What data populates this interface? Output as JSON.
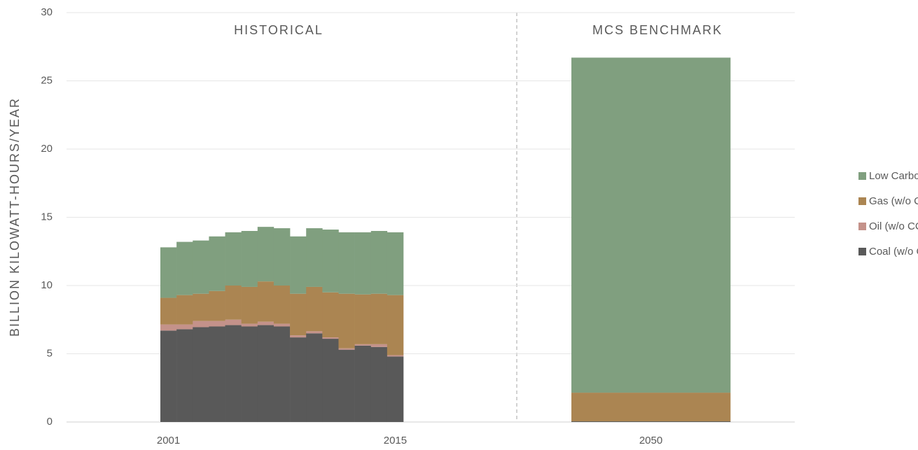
{
  "chart_data": [
    {
      "type": "bar",
      "stacked": true,
      "title": "HISTORICAL",
      "y_label": "BILLION KILOWATT-HOURS/YEAR",
      "categories": [
        "2001",
        null,
        null,
        null,
        null,
        null,
        null,
        null,
        null,
        null,
        null,
        null,
        null,
        null,
        "2015"
      ],
      "series": [
        {
          "name": "Coal (w/o CCS)",
          "color": "#595959",
          "values": [
            6.7,
            6.8,
            6.95,
            7.0,
            7.1,
            7.0,
            7.1,
            7.0,
            6.2,
            6.5,
            6.1,
            5.3,
            5.6,
            5.5,
            4.8
          ]
        },
        {
          "name": "Oil (w/o CCS)",
          "color": "#c4928a",
          "values": [
            0.45,
            0.35,
            0.45,
            0.4,
            0.4,
            0.2,
            0.25,
            0.2,
            0.15,
            0.15,
            0.1,
            0.1,
            0.1,
            0.2,
            0.1
          ]
        },
        {
          "name": "Gas (w/o CCS)",
          "color": "#ab8552",
          "values": [
            1.95,
            2.15,
            2.0,
            2.2,
            2.5,
            2.7,
            2.95,
            2.8,
            3.05,
            3.25,
            3.3,
            4.0,
            3.65,
            3.7,
            4.4
          ]
        },
        {
          "name": "Low Carbon",
          "color": "#809f7f",
          "values": [
            3.7,
            3.9,
            3.9,
            4.0,
            3.9,
            4.1,
            4.0,
            4.2,
            4.2,
            4.3,
            4.6,
            4.5,
            4.55,
            4.6,
            4.6
          ]
        }
      ],
      "ylim": [
        0,
        30
      ],
      "yticks": [
        0,
        5,
        10,
        15,
        20,
        25,
        30
      ],
      "grid": true,
      "legend": "right"
    },
    {
      "type": "bar",
      "stacked": true,
      "title": "MCS BENCHMARK",
      "categories": [
        "2050"
      ],
      "series": [
        {
          "color": "#595959",
          "values": [
            0.05
          ]
        },
        {
          "color": "#c4928a",
          "values": [
            0
          ]
        },
        {
          "color": "#ab8552",
          "values": [
            2.1
          ]
        },
        {
          "color": "#809f7f",
          "values": [
            24.55
          ]
        }
      ]
    }
  ]
}
